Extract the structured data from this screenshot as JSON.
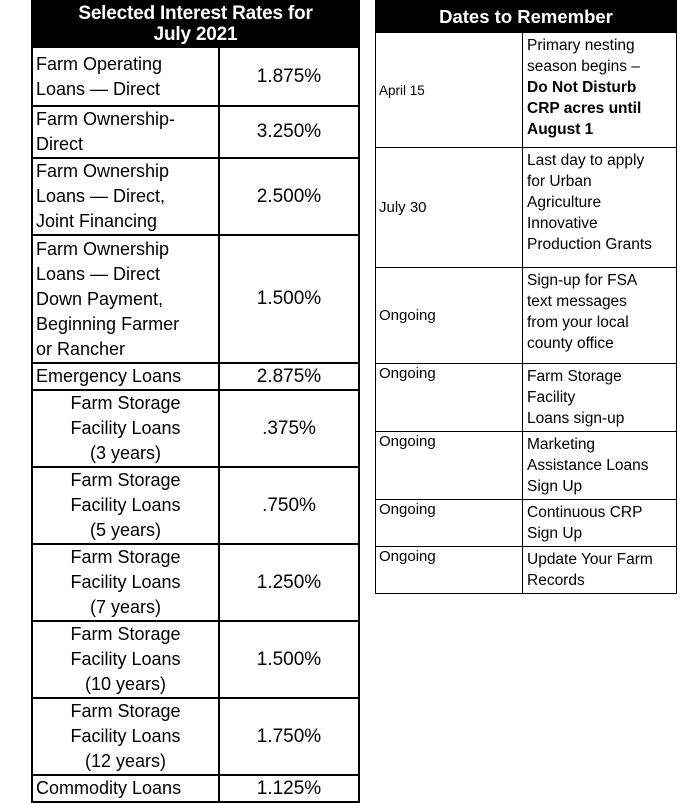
{
  "colors": {
    "header_bg": "#000000",
    "header_text": "#ffffff",
    "border": "#000000",
    "body_bg": "#ffffff",
    "body_text": "#000000"
  },
  "rates_table": {
    "title": "Selected Interest Rates for\nJuly 2021",
    "rows": [
      {
        "name": "Farm Operating\nLoans — Direct",
        "rate": "1.875%"
      },
      {
        "name": "Farm Ownership-\nDirect",
        "rate": "3.250%"
      },
      {
        "name": "Farm Ownership\nLoans — Direct,\nJoint Financing",
        "rate": "2.500%"
      },
      {
        "name": "Farm Ownership\nLoans — Direct\nDown Payment,\nBeginning Farmer\nor Rancher",
        "rate": "1.500%"
      },
      {
        "name": "Emergency Loans",
        "rate": "2.875%"
      },
      {
        "name": "Farm Storage\nFacility Loans\n(3 years)",
        "rate": ".375%"
      },
      {
        "name": "Farm Storage\nFacility Loans\n(5 years)",
        "rate": ".750%"
      },
      {
        "name": "Farm Storage\nFacility Loans\n(7 years)",
        "rate": "1.250%"
      },
      {
        "name": "Farm Storage\nFacility Loans\n(10 years)",
        "rate": "1.500%"
      },
      {
        "name": "Farm Storage\nFacility Loans\n(12 years)",
        "rate": "1.750%"
      },
      {
        "name": "Commodity Loans",
        "rate": "1.125%"
      }
    ]
  },
  "dates_table": {
    "title": "Dates to Remember",
    "rows": [
      {
        "date": "April 15",
        "text": "Primary nesting\nseason begins –\n",
        "bold_text": "Do Not Disturb\nCRP acres until\nAugust 1"
      },
      {
        "date": "July 30",
        "text": "Last day to apply\nfor Urban\nAgriculture\nInnovative\nProduction Grants"
      },
      {
        "date": "Ongoing",
        "text": "Sign-up for FSA\ntext messages\nfrom your local\ncounty office"
      },
      {
        "date": "Ongoing",
        "text": "Farm Storage\nFacility\nLoans sign-up"
      },
      {
        "date": "Ongoing",
        "text": "Marketing\nAssistance Loans\nSign Up"
      },
      {
        "date": "Ongoing",
        "text": "Continuous CRP\nSign Up"
      },
      {
        "date": "Ongoing",
        "text": "Update Your Farm\nRecords"
      }
    ]
  }
}
